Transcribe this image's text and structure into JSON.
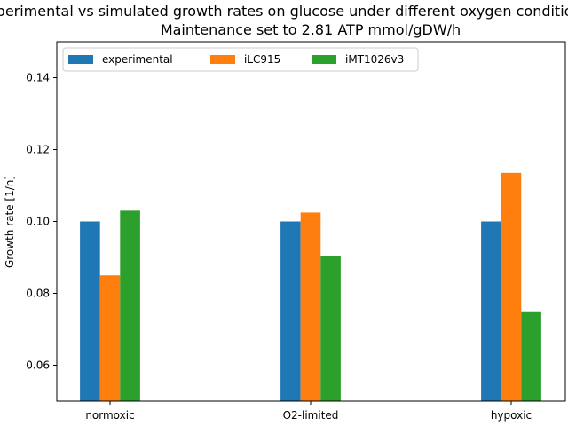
{
  "chart_data": {
    "type": "bar",
    "title_lines": [
      "Experimental vs simulated growth rates on glucose under different oxygen conditions",
      "Maintenance set to 2.81 ATP mmol/gDW/h"
    ],
    "xlabel": "",
    "ylabel": "Growth rate [1/h]",
    "categories": [
      "normoxic",
      "O2-limited",
      "hypoxic"
    ],
    "series": [
      {
        "name": "experimental",
        "color": "#1f77b4",
        "values": [
          0.1,
          0.1,
          0.1
        ]
      },
      {
        "name": "iLC915",
        "color": "#ff7f0e",
        "values": [
          0.085,
          0.1025,
          0.1135
        ]
      },
      {
        "name": "iMT1026v3",
        "color": "#2ca02c",
        "values": [
          0.103,
          0.0905,
          0.075
        ]
      }
    ],
    "ylim": [
      0.05,
      0.15
    ],
    "yticks": [
      "0.06",
      "0.08",
      "0.10",
      "0.12",
      "0.14"
    ],
    "grid": false,
    "legend_position": "top-left"
  }
}
